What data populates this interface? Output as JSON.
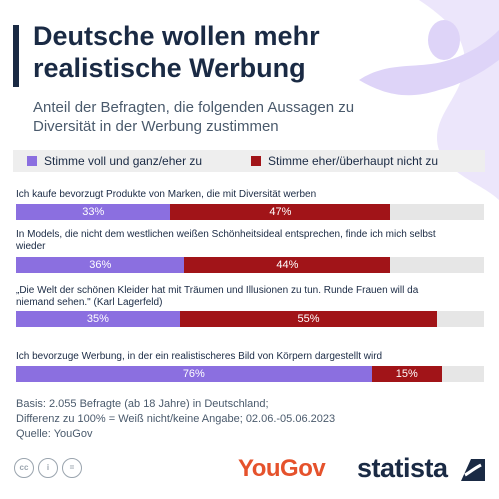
{
  "title": "Deutsche wollen mehr realistische Werbung",
  "subtitle": "Anteil der Befragten, die folgenden Aussagen zu Diversität in der Werbung zustimmen",
  "legend": {
    "agree": "Stimme voll und ganz/eher zu",
    "disagree": "Stimme eher/überhaupt nicht zu"
  },
  "colors": {
    "agree": "#8b6fe0",
    "disagree": "#a11418",
    "remainder": "#e6e6e6",
    "title": "#1a2a44"
  },
  "chart_data": {
    "type": "bar",
    "orientation": "horizontal-stacked",
    "categories": [
      "Ich kaufe bevorzugt Produkte von Marken, die mit Diversität werben",
      "In Models, die nicht dem westlichen weißen Schönheitsideal entsprechen, finde ich mich selbst wieder",
      "„Die Welt der schönen Kleider hat mit Träumen und Illusionen zu tun. Runde Frauen will da niemand sehen.\" (Karl Lagerfeld)",
      "Ich bevorzuge Werbung, in der ein realistischeres Bild von Körpern dargestellt wird"
    ],
    "series": [
      {
        "name": "Stimme voll und ganz/eher zu",
        "values": [
          33,
          36,
          35,
          76
        ],
        "labels": [
          "33%",
          "36%",
          "35%",
          "76%"
        ]
      },
      {
        "name": "Stimme eher/überhaupt nicht zu",
        "values": [
          47,
          44,
          55,
          15
        ],
        "labels": [
          "47%",
          "44%",
          "55%",
          "15%"
        ]
      }
    ],
    "xlim": [
      0,
      100
    ]
  },
  "footer": {
    "basis": "Basis: 2.055 Befragte (ab 18 Jahre) in Deutschland;",
    "difference": "Differenz zu 100% = Weiß nicht/keine Angabe; 02.06.-05.06.2023",
    "source": "Quelle: YouGov"
  },
  "logos": {
    "yougov": "YouGov",
    "statista": "statista"
  },
  "license_icons": [
    "cc-icon",
    "person-icon",
    "equals-icon"
  ]
}
